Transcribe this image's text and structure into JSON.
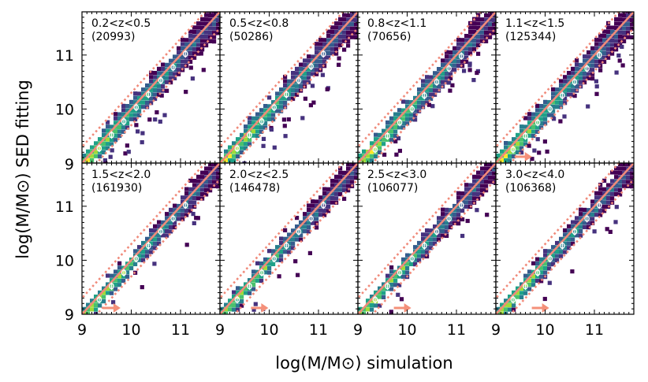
{
  "chart_data": {
    "type": "heatmap",
    "xlabel": "log(M/M⊙) simulation",
    "ylabel": "log(M/M⊙) SED fitting",
    "xlim": [
      9,
      11.8
    ],
    "ylim": [
      9,
      11.8
    ],
    "x_ticks": [
      "9",
      "10",
      "11"
    ],
    "y_ticks": [
      "9",
      "10",
      "11"
    ],
    "reference_lines": {
      "identity": "solid",
      "offset_dex": 0.3,
      "offset_style": "dotted",
      "color": "#f08a7a"
    },
    "colormap": [
      "#fde725",
      "#a0da39",
      "#4ac16d",
      "#1fa187",
      "#277f8e",
      "#365c8d",
      "#46327e",
      "#440154"
    ],
    "median_marker_color": "#ffffff",
    "arrow_color": "#f4907a",
    "panels": [
      {
        "z_range": "0.2<z<0.5",
        "count": "(20993)",
        "arrow_x": null
      },
      {
        "z_range": "0.5<z<0.8",
        "count": "(50286)",
        "arrow_x": null
      },
      {
        "z_range": "0.8<z<1.1",
        "count": "(70656)",
        "arrow_x": null
      },
      {
        "z_range": "1.1<z<1.5",
        "count": "(125344)",
        "arrow_x": 9.7
      },
      {
        "z_range": "1.5<z<2.0",
        "count": "(161930)",
        "arrow_x": 9.75
      },
      {
        "z_range": "2.0<z<2.5",
        "count": "(146478)",
        "arrow_x": 9.95
      },
      {
        "z_range": "2.5<z<3.0",
        "count": "(106077)",
        "arrow_x": 10.05
      },
      {
        "z_range": "3.0<z<4.0",
        "count": "(106368)",
        "arrow_x": 10.05
      }
    ],
    "medians": [
      [
        [
          9.35,
          9.27
        ],
        [
          9.6,
          9.52
        ],
        [
          9.85,
          9.77
        ],
        [
          10.1,
          10.03
        ],
        [
          10.35,
          10.27
        ],
        [
          10.6,
          10.53
        ],
        [
          10.85,
          10.77
        ],
        [
          11.1,
          11.02
        ]
      ],
      [
        [
          9.35,
          9.27
        ],
        [
          9.6,
          9.52
        ],
        [
          9.85,
          9.77
        ],
        [
          10.1,
          10.03
        ],
        [
          10.35,
          10.27
        ],
        [
          10.6,
          10.53
        ],
        [
          10.85,
          10.79
        ],
        [
          11.1,
          11.02
        ]
      ],
      [
        [
          9.35,
          9.25
        ],
        [
          9.6,
          9.5
        ],
        [
          9.85,
          9.75
        ],
        [
          10.1,
          10.0
        ],
        [
          10.35,
          10.25
        ],
        [
          10.6,
          10.5
        ],
        [
          10.85,
          10.75
        ],
        [
          11.1,
          10.98
        ]
      ],
      [
        [
          9.35,
          9.25
        ],
        [
          9.6,
          9.5
        ],
        [
          9.85,
          9.75
        ],
        [
          10.1,
          10.0
        ],
        [
          10.35,
          10.25
        ],
        [
          10.6,
          10.5
        ],
        [
          10.85,
          10.75
        ],
        [
          11.1,
          11.0
        ]
      ],
      [
        [
          9.35,
          9.27
        ],
        [
          9.6,
          9.52
        ],
        [
          9.85,
          9.77
        ],
        [
          10.1,
          10.03
        ],
        [
          10.35,
          10.27
        ],
        [
          10.6,
          10.53
        ],
        [
          10.85,
          10.77
        ],
        [
          11.1,
          11.02
        ]
      ],
      [
        [
          9.35,
          9.27
        ],
        [
          9.6,
          9.52
        ],
        [
          9.85,
          9.77
        ],
        [
          10.1,
          10.03
        ],
        [
          10.35,
          10.27
        ],
        [
          10.6,
          10.53
        ],
        [
          10.85,
          10.77
        ],
        [
          11.1,
          11.02
        ]
      ],
      [
        [
          9.35,
          9.27
        ],
        [
          9.6,
          9.52
        ],
        [
          9.85,
          9.77
        ],
        [
          10.1,
          10.03
        ],
        [
          10.35,
          10.27
        ],
        [
          10.6,
          10.53
        ],
        [
          10.85,
          10.77
        ],
        [
          11.1,
          11.02
        ]
      ],
      [
        [
          9.35,
          9.27
        ],
        [
          9.6,
          9.52
        ],
        [
          9.85,
          9.77
        ],
        [
          10.1,
          10.03
        ],
        [
          10.35,
          10.27
        ],
        [
          10.6,
          10.53
        ],
        [
          10.85,
          10.77
        ],
        [
          11.1,
          11.02
        ]
      ]
    ]
  }
}
